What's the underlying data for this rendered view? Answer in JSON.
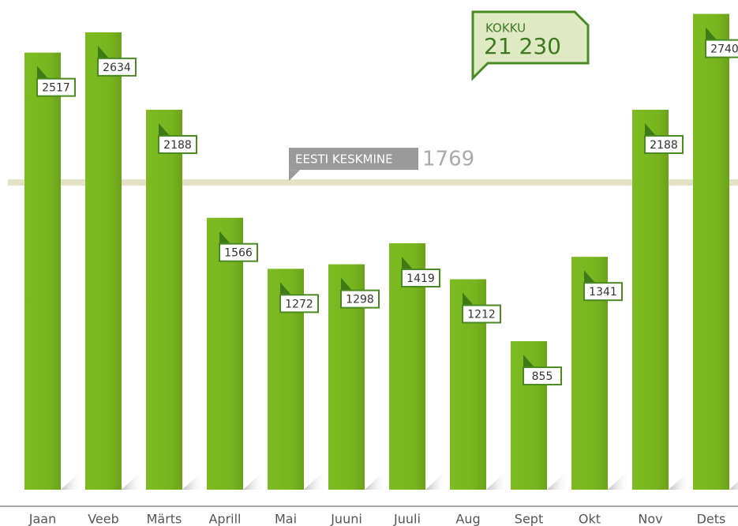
{
  "chart_data": {
    "type": "bar",
    "categories": [
      "Jaan",
      "Veeb",
      "Märts",
      "Aprill",
      "Mai",
      "Juuni",
      "Juuli",
      "Aug",
      "Sept",
      "Okt",
      "Nov",
      "Dets"
    ],
    "values": [
      2517,
      2634,
      2188,
      1566,
      1272,
      1298,
      1419,
      1212,
      855,
      1341,
      2188,
      2740
    ],
    "color": "#78b41f",
    "ylim": [
      0,
      2820
    ],
    "annotations": [
      {
        "label": "EESTI KESKMINE",
        "value": 1769
      },
      {
        "label": "KOKKU",
        "value": 21230,
        "value_label": "21 230"
      }
    ]
  }
}
